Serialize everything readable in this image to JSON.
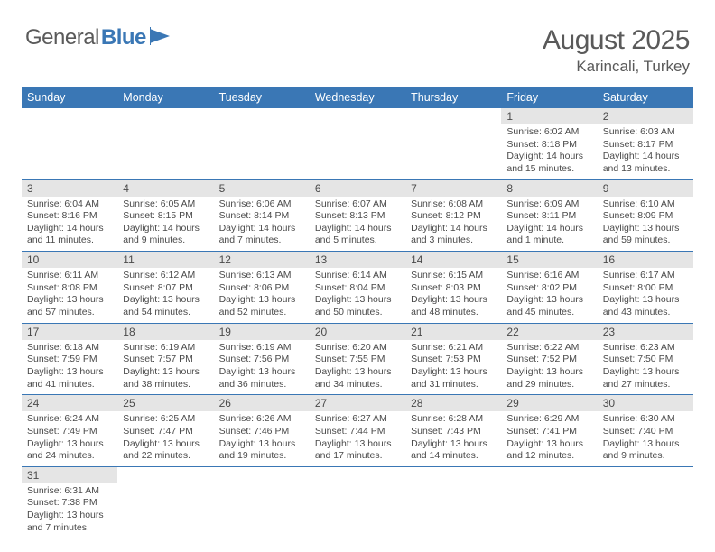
{
  "logo": {
    "part1": "General",
    "part2": "Blue"
  },
  "title": "August 2025",
  "location": "Karincali, Turkey",
  "colors": {
    "header_bg": "#3a77b5",
    "header_text": "#ffffff",
    "daynum_bg": "#e5e5e5",
    "border": "#3a77b5",
    "text": "#4a4a4a",
    "logo_blue": "#3a77b5"
  },
  "weekdays": [
    "Sunday",
    "Monday",
    "Tuesday",
    "Wednesday",
    "Thursday",
    "Friday",
    "Saturday"
  ],
  "weeks": [
    [
      null,
      null,
      null,
      null,
      null,
      {
        "n": "1",
        "sunrise": "Sunrise: 6:02 AM",
        "sunset": "Sunset: 8:18 PM",
        "daylight": "Daylight: 14 hours and 15 minutes."
      },
      {
        "n": "2",
        "sunrise": "Sunrise: 6:03 AM",
        "sunset": "Sunset: 8:17 PM",
        "daylight": "Daylight: 14 hours and 13 minutes."
      }
    ],
    [
      {
        "n": "3",
        "sunrise": "Sunrise: 6:04 AM",
        "sunset": "Sunset: 8:16 PM",
        "daylight": "Daylight: 14 hours and 11 minutes."
      },
      {
        "n": "4",
        "sunrise": "Sunrise: 6:05 AM",
        "sunset": "Sunset: 8:15 PM",
        "daylight": "Daylight: 14 hours and 9 minutes."
      },
      {
        "n": "5",
        "sunrise": "Sunrise: 6:06 AM",
        "sunset": "Sunset: 8:14 PM",
        "daylight": "Daylight: 14 hours and 7 minutes."
      },
      {
        "n": "6",
        "sunrise": "Sunrise: 6:07 AM",
        "sunset": "Sunset: 8:13 PM",
        "daylight": "Daylight: 14 hours and 5 minutes."
      },
      {
        "n": "7",
        "sunrise": "Sunrise: 6:08 AM",
        "sunset": "Sunset: 8:12 PM",
        "daylight": "Daylight: 14 hours and 3 minutes."
      },
      {
        "n": "8",
        "sunrise": "Sunrise: 6:09 AM",
        "sunset": "Sunset: 8:11 PM",
        "daylight": "Daylight: 14 hours and 1 minute."
      },
      {
        "n": "9",
        "sunrise": "Sunrise: 6:10 AM",
        "sunset": "Sunset: 8:09 PM",
        "daylight": "Daylight: 13 hours and 59 minutes."
      }
    ],
    [
      {
        "n": "10",
        "sunrise": "Sunrise: 6:11 AM",
        "sunset": "Sunset: 8:08 PM",
        "daylight": "Daylight: 13 hours and 57 minutes."
      },
      {
        "n": "11",
        "sunrise": "Sunrise: 6:12 AM",
        "sunset": "Sunset: 8:07 PM",
        "daylight": "Daylight: 13 hours and 54 minutes."
      },
      {
        "n": "12",
        "sunrise": "Sunrise: 6:13 AM",
        "sunset": "Sunset: 8:06 PM",
        "daylight": "Daylight: 13 hours and 52 minutes."
      },
      {
        "n": "13",
        "sunrise": "Sunrise: 6:14 AM",
        "sunset": "Sunset: 8:04 PM",
        "daylight": "Daylight: 13 hours and 50 minutes."
      },
      {
        "n": "14",
        "sunrise": "Sunrise: 6:15 AM",
        "sunset": "Sunset: 8:03 PM",
        "daylight": "Daylight: 13 hours and 48 minutes."
      },
      {
        "n": "15",
        "sunrise": "Sunrise: 6:16 AM",
        "sunset": "Sunset: 8:02 PM",
        "daylight": "Daylight: 13 hours and 45 minutes."
      },
      {
        "n": "16",
        "sunrise": "Sunrise: 6:17 AM",
        "sunset": "Sunset: 8:00 PM",
        "daylight": "Daylight: 13 hours and 43 minutes."
      }
    ],
    [
      {
        "n": "17",
        "sunrise": "Sunrise: 6:18 AM",
        "sunset": "Sunset: 7:59 PM",
        "daylight": "Daylight: 13 hours and 41 minutes."
      },
      {
        "n": "18",
        "sunrise": "Sunrise: 6:19 AM",
        "sunset": "Sunset: 7:57 PM",
        "daylight": "Daylight: 13 hours and 38 minutes."
      },
      {
        "n": "19",
        "sunrise": "Sunrise: 6:19 AM",
        "sunset": "Sunset: 7:56 PM",
        "daylight": "Daylight: 13 hours and 36 minutes."
      },
      {
        "n": "20",
        "sunrise": "Sunrise: 6:20 AM",
        "sunset": "Sunset: 7:55 PM",
        "daylight": "Daylight: 13 hours and 34 minutes."
      },
      {
        "n": "21",
        "sunrise": "Sunrise: 6:21 AM",
        "sunset": "Sunset: 7:53 PM",
        "daylight": "Daylight: 13 hours and 31 minutes."
      },
      {
        "n": "22",
        "sunrise": "Sunrise: 6:22 AM",
        "sunset": "Sunset: 7:52 PM",
        "daylight": "Daylight: 13 hours and 29 minutes."
      },
      {
        "n": "23",
        "sunrise": "Sunrise: 6:23 AM",
        "sunset": "Sunset: 7:50 PM",
        "daylight": "Daylight: 13 hours and 27 minutes."
      }
    ],
    [
      {
        "n": "24",
        "sunrise": "Sunrise: 6:24 AM",
        "sunset": "Sunset: 7:49 PM",
        "daylight": "Daylight: 13 hours and 24 minutes."
      },
      {
        "n": "25",
        "sunrise": "Sunrise: 6:25 AM",
        "sunset": "Sunset: 7:47 PM",
        "daylight": "Daylight: 13 hours and 22 minutes."
      },
      {
        "n": "26",
        "sunrise": "Sunrise: 6:26 AM",
        "sunset": "Sunset: 7:46 PM",
        "daylight": "Daylight: 13 hours and 19 minutes."
      },
      {
        "n": "27",
        "sunrise": "Sunrise: 6:27 AM",
        "sunset": "Sunset: 7:44 PM",
        "daylight": "Daylight: 13 hours and 17 minutes."
      },
      {
        "n": "28",
        "sunrise": "Sunrise: 6:28 AM",
        "sunset": "Sunset: 7:43 PM",
        "daylight": "Daylight: 13 hours and 14 minutes."
      },
      {
        "n": "29",
        "sunrise": "Sunrise: 6:29 AM",
        "sunset": "Sunset: 7:41 PM",
        "daylight": "Daylight: 13 hours and 12 minutes."
      },
      {
        "n": "30",
        "sunrise": "Sunrise: 6:30 AM",
        "sunset": "Sunset: 7:40 PM",
        "daylight": "Daylight: 13 hours and 9 minutes."
      }
    ],
    [
      {
        "n": "31",
        "sunrise": "Sunrise: 6:31 AM",
        "sunset": "Sunset: 7:38 PM",
        "daylight": "Daylight: 13 hours and 7 minutes."
      },
      null,
      null,
      null,
      null,
      null,
      null
    ]
  ]
}
